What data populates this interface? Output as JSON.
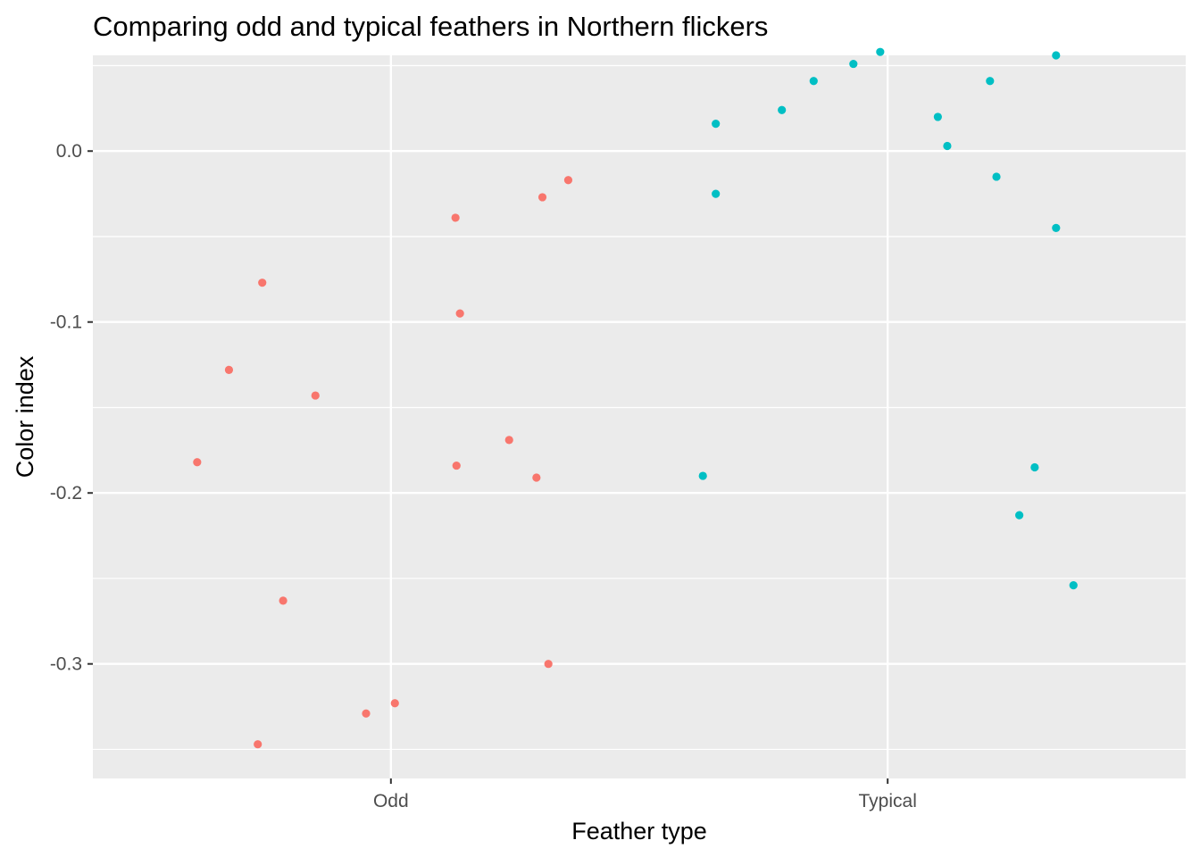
{
  "chart_data": {
    "type": "scatter",
    "title": "Comparing odd and typical feathers in Northern flickers",
    "xlabel": "Feather type",
    "ylabel": "Color index",
    "categories": [
      "Odd",
      "Typical"
    ],
    "ylim": [
      -0.367,
      0.056
    ],
    "yticks": [
      0.0,
      -0.1,
      -0.2,
      -0.3
    ],
    "ytick_labels": [
      "0.0",
      "-0.1",
      "-0.2",
      "-0.3"
    ],
    "grid": true,
    "legend": "none",
    "series": [
      {
        "category": "Odd",
        "color": "#F8766D",
        "points": [
          {
            "x": 0.61,
            "y": -0.182
          },
          {
            "x": 0.674,
            "y": -0.128
          },
          {
            "x": 0.741,
            "y": -0.077
          },
          {
            "x": 0.783,
            "y": -0.263
          },
          {
            "x": 0.732,
            "y": -0.347
          },
          {
            "x": 0.848,
            "y": -0.143
          },
          {
            "x": 0.95,
            "y": -0.329
          },
          {
            "x": 1.008,
            "y": -0.323
          },
          {
            "x": 1.13,
            "y": -0.039
          },
          {
            "x": 1.139,
            "y": -0.095
          },
          {
            "x": 1.132,
            "y": -0.184
          },
          {
            "x": 1.238,
            "y": -0.169
          },
          {
            "x": 1.293,
            "y": -0.191
          },
          {
            "x": 1.305,
            "y": -0.027
          },
          {
            "x": 1.317,
            "y": -0.3
          },
          {
            "x": 1.357,
            "y": -0.017
          }
        ]
      },
      {
        "category": "Typical",
        "color": "#00BFC4",
        "points": [
          {
            "x": 1.628,
            "y": -0.19
          },
          {
            "x": 1.654,
            "y": 0.016
          },
          {
            "x": 1.654,
            "y": -0.025
          },
          {
            "x": 1.787,
            "y": 0.024
          },
          {
            "x": 1.851,
            "y": 0.041
          },
          {
            "x": 1.931,
            "y": 0.051
          },
          {
            "x": 1.985,
            "y": 0.058
          },
          {
            "x": 2.101,
            "y": 0.02
          },
          {
            "x": 2.12,
            "y": 0.003
          },
          {
            "x": 2.206,
            "y": 0.041
          },
          {
            "x": 2.219,
            "y": -0.015
          },
          {
            "x": 2.265,
            "y": -0.213
          },
          {
            "x": 2.296,
            "y": -0.185
          },
          {
            "x": 2.339,
            "y": 0.056
          },
          {
            "x": 2.339,
            "y": -0.045
          },
          {
            "x": 2.374,
            "y": -0.254
          }
        ]
      }
    ]
  }
}
